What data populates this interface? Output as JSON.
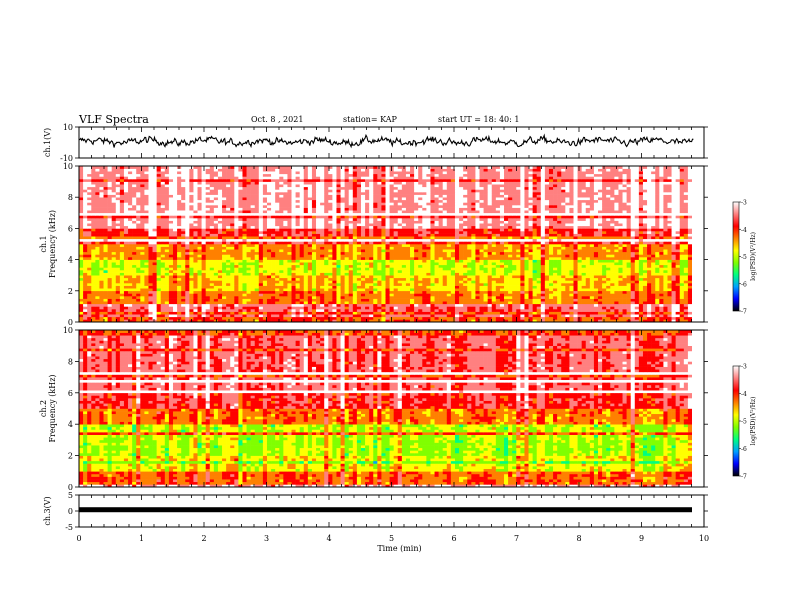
{
  "header": {
    "title": "VLF Spectra",
    "date": "Oct. 8  , 2021",
    "station": "station= KAP",
    "start": "start  UT =   18: 40: 1"
  },
  "colors": {
    "colormap": [
      "#000000",
      "#0000ff",
      "#00a0ff",
      "#00ff80",
      "#80ff00",
      "#ffff00",
      "#ff8000",
      "#ff0000",
      "#ff8080",
      "#ffffff"
    ]
  },
  "chart_data": [
    {
      "type": "line",
      "name": "ch1-waveform",
      "ylabel": "ch.1(V)",
      "ylim": [
        -10,
        10
      ],
      "yticks": [
        "10",
        "-10"
      ],
      "xlim": [
        0,
        10
      ],
      "description_values": "noise waveform oscillating roughly between -3 and 4 V"
    },
    {
      "type": "heatmap",
      "name": "ch1-spectrogram",
      "ylabel": "ch.1\nFrequency (kHz)",
      "ylim": [
        0,
        10
      ],
      "yticks": [
        "0",
        "2",
        "4",
        "6",
        "8",
        "10"
      ],
      "xlim": [
        0,
        9.83
      ],
      "colorbar": {
        "label": "log(PSD)(V²/Hz)",
        "range": [
          -7,
          -3
        ],
        "ticks": [
          "-3",
          "-4",
          "-5",
          "-6",
          "-7"
        ]
      },
      "bands_khz_logpsd": [
        [
          0,
          1,
          -3.6
        ],
        [
          1,
          2,
          -4.3
        ],
        [
          2,
          3,
          -4.6
        ],
        [
          3,
          4,
          -4.9
        ],
        [
          4,
          5,
          -4.4
        ],
        [
          5,
          6,
          -3.8
        ],
        [
          6,
          10,
          -3.3
        ]
      ]
    },
    {
      "type": "heatmap",
      "name": "ch2-spectrogram",
      "ylabel": "ch.2\nFrequency (kHz)",
      "ylim": [
        0,
        10
      ],
      "yticks": [
        "0",
        "2",
        "4",
        "6",
        "8",
        "10"
      ],
      "xlim": [
        0,
        9.83
      ],
      "colorbar": {
        "label": "log(PSD)(V²/Hz)",
        "range": [
          -7,
          -3
        ],
        "ticks": [
          "-3",
          "-4",
          "-5",
          "-6",
          "-7"
        ]
      },
      "bands_khz_logpsd": [
        [
          0,
          1,
          -4.2
        ],
        [
          1,
          2,
          -4.8
        ],
        [
          2,
          3,
          -5.1
        ],
        [
          3,
          4,
          -5.0
        ],
        [
          4,
          5,
          -4.3
        ],
        [
          5,
          6,
          -3.8
        ],
        [
          6,
          10,
          -3.6
        ]
      ]
    },
    {
      "type": "line",
      "name": "ch3-waveform",
      "ylabel": "ch.3(V)",
      "ylim": [
        -5,
        5
      ],
      "yticks": [
        "5",
        "0",
        "-5"
      ],
      "xlim": [
        0,
        10
      ],
      "xlabel": "Time  (min)",
      "xticks": [
        "0",
        "1",
        "2",
        "3",
        "4",
        "5",
        "6",
        "7",
        "8",
        "9",
        "10"
      ],
      "level_v": 0.4
    }
  ]
}
